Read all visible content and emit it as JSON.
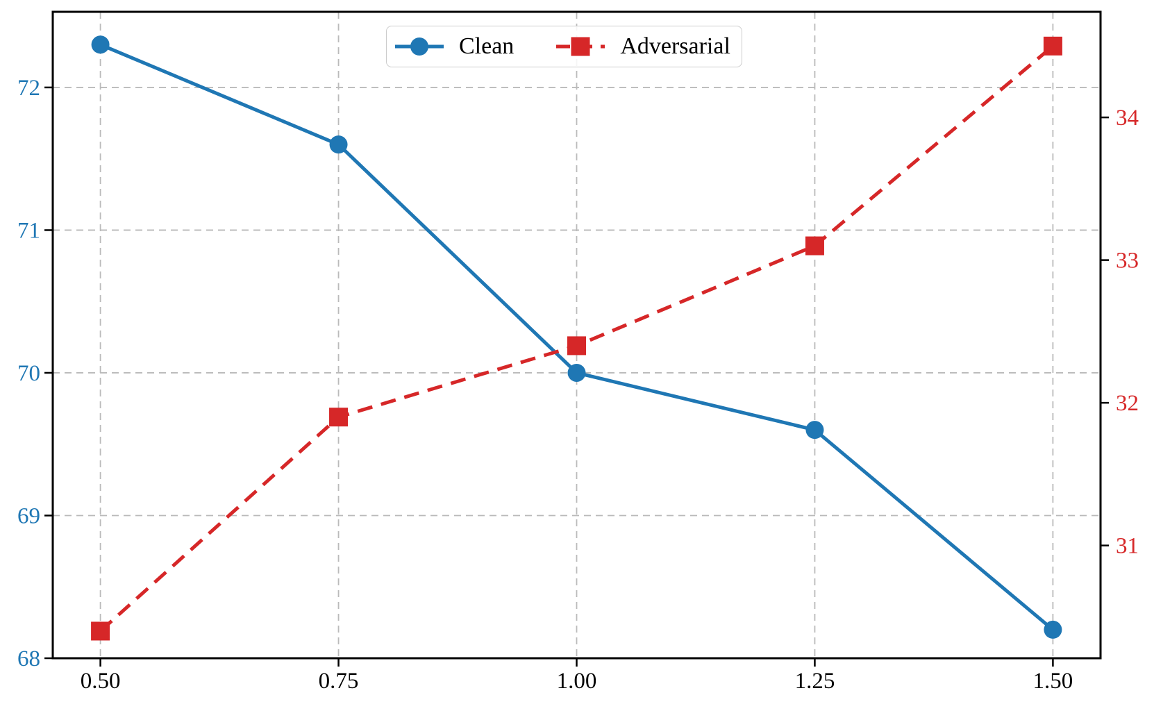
{
  "chart_data": {
    "type": "line",
    "title": "",
    "x": [
      0.5,
      0.75,
      1.0,
      1.25,
      1.5
    ],
    "series": [
      {
        "name": "Clean",
        "axis": "left",
        "values": [
          72.3,
          71.6,
          70.0,
          69.6,
          68.2
        ],
        "color": "#1f77b4",
        "line_style": "solid",
        "marker": "circle"
      },
      {
        "name": "Adversarial",
        "axis": "right",
        "values": [
          30.4,
          31.9,
          32.4,
          33.1,
          34.5
        ],
        "color": "#d62728",
        "line_style": "dashed",
        "marker": "square"
      }
    ],
    "axes": {
      "x": {
        "lim": [
          0.45,
          1.55
        ],
        "ticks": [
          0.5,
          0.75,
          1.0,
          1.25,
          1.5
        ],
        "labels": [
          "0.50",
          "0.75",
          "1.00",
          "1.25",
          "1.50"
        ],
        "label_color": "#000000"
      },
      "left": {
        "lim": [
          68.0,
          72.53
        ],
        "ticks": [
          68,
          69,
          70,
          71,
          72
        ],
        "labels": [
          "68",
          "69",
          "70",
          "71",
          "72"
        ],
        "label_color": "#1f77b4"
      },
      "right": {
        "lim": [
          30.21,
          34.74
        ],
        "ticks": [
          31,
          32,
          33,
          34
        ],
        "labels": [
          "31",
          "32",
          "33",
          "34"
        ],
        "label_color": "#d62728"
      }
    },
    "grid": {
      "visible": true,
      "color": "#bababa",
      "style": "dashed"
    },
    "legend": {
      "position": "upper center",
      "entries": [
        "Clean",
        "Adversarial"
      ]
    }
  }
}
